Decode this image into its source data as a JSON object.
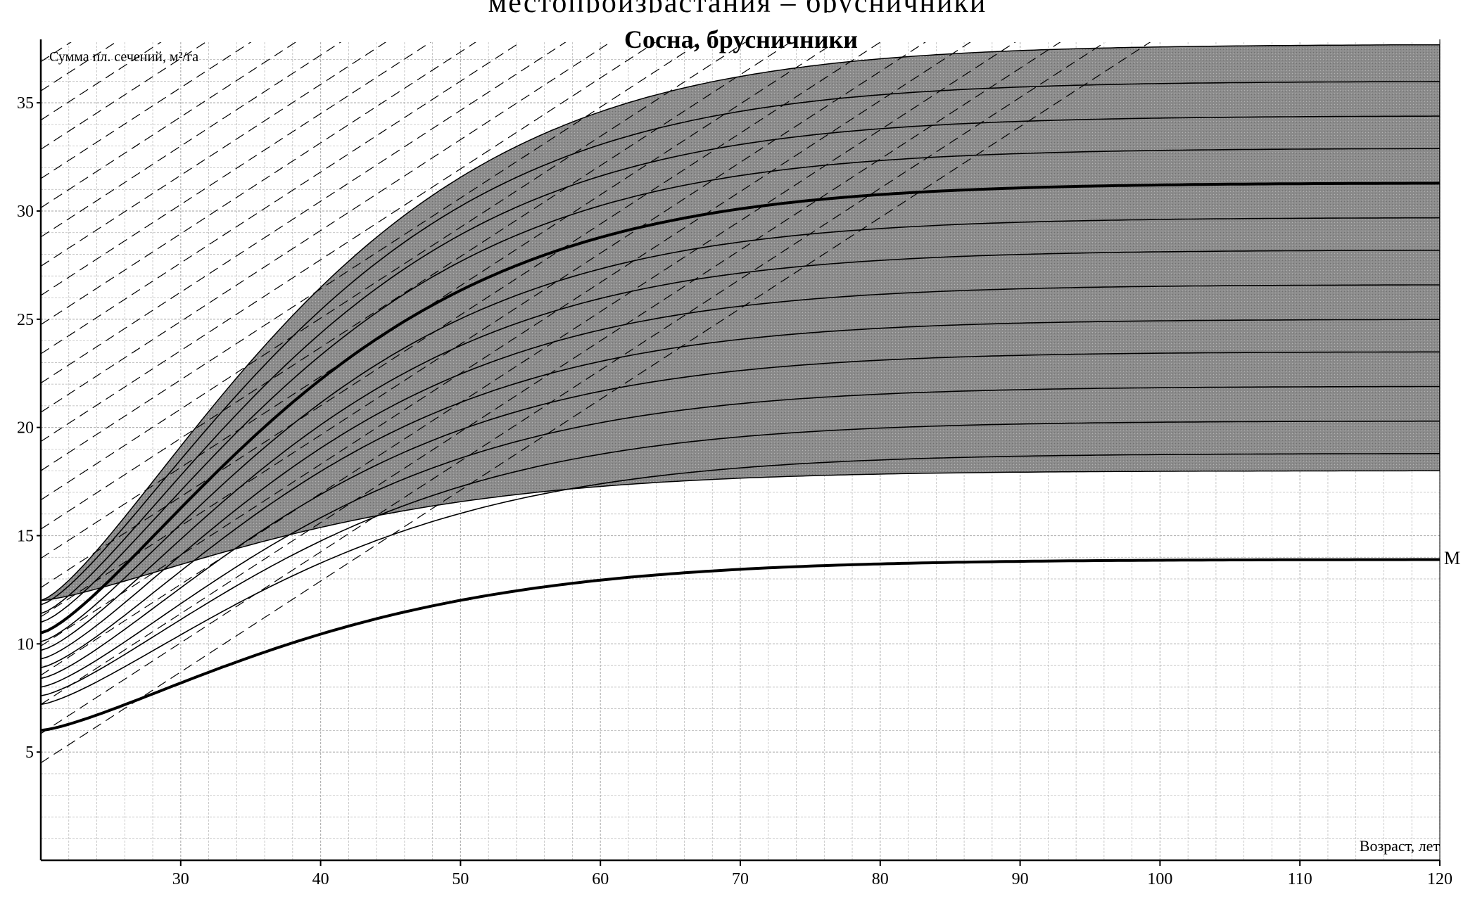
{
  "header_text": "местопроизрастания – брусничники",
  "chart_data": {
    "type": "line",
    "title": "Сосна, брусничники",
    "xlabel": "Возраст, лет",
    "ylabel": "Сумма пл. сечений, м²/га",
    "xlim": [
      20,
      120
    ],
    "ylim": [
      0,
      37.8
    ],
    "x_ticks": [
      30,
      40,
      50,
      60,
      70,
      80,
      90,
      100,
      110,
      120
    ],
    "y_ticks": [
      5,
      10,
      15,
      20,
      25,
      30,
      35
    ],
    "grid": true,
    "band": {
      "name": "shaded zone",
      "upper": {
        "asymptote": 37.7,
        "start": 12.0
      },
      "lower": {
        "asymptote": 18.0,
        "start": 12.0
      }
    },
    "curve_label": "M",
    "series": [
      {
        "style": "bold",
        "label": "M",
        "start": 6.0,
        "asymptote": 13.9
      },
      {
        "style": "bold",
        "start": 10.5,
        "asymptote": 31.3
      },
      {
        "style": "solid",
        "start": 11.8,
        "asymptote": 36.0
      },
      {
        "style": "solid",
        "start": 11.4,
        "asymptote": 34.4
      },
      {
        "style": "solid",
        "start": 11.0,
        "asymptote": 32.9
      },
      {
        "style": "solid",
        "start": 10.1,
        "asymptote": 29.7
      },
      {
        "style": "solid",
        "start": 9.7,
        "asymptote": 28.2
      },
      {
        "style": "solid",
        "start": 9.3,
        "asymptote": 26.6
      },
      {
        "style": "solid",
        "start": 8.9,
        "asymptote": 25.0
      },
      {
        "style": "solid",
        "start": 8.4,
        "asymptote": 23.5
      },
      {
        "style": "solid",
        "start": 8.0,
        "asymptote": 21.9
      },
      {
        "style": "solid",
        "start": 7.6,
        "asymptote": 20.3
      },
      {
        "style": "solid",
        "start": 7.2,
        "asymptote": 18.8
      }
    ],
    "dashed_family": {
      "style": "dashed",
      "description_hidden": true
    }
  }
}
